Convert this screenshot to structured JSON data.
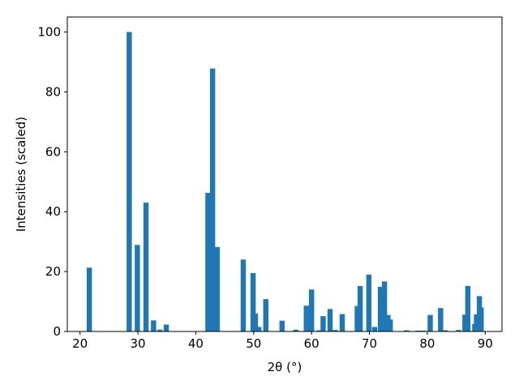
{
  "chart_data": {
    "type": "bar",
    "xlabel": "2θ (°)",
    "ylabel": "Intensities (scaled)",
    "x": [
      21.6,
      28.5,
      29.9,
      31.4,
      32.7,
      33.8,
      34.9,
      42.1,
      42.9,
      43.7,
      48.2,
      49.9,
      50.3,
      50.9,
      52.1,
      54.9,
      57.3,
      59.1,
      60.0,
      61.3,
      62.0,
      63.2,
      64.1,
      65.3,
      67.9,
      68.4,
      69.9,
      70.9,
      71.9,
      72.6,
      73.2,
      73.6,
      76.4,
      78.4,
      79.3,
      80.5,
      82.3,
      83.1,
      85.4,
      86.5,
      87.0,
      88.2,
      88.5,
      89.0,
      89.3
    ],
    "values": [
      21.3,
      100,
      28.9,
      43,
      3.7,
      0.6,
      2.3,
      46.3,
      87.8,
      28.2,
      24,
      19.5,
      6,
      1.5,
      10.8,
      3.6,
      0.6,
      8.6,
      14,
      0.4,
      5.1,
      7.5,
      0.5,
      5.8,
      8.5,
      15.2,
      19,
      1.5,
      14.9,
      16.7,
      5.5,
      4,
      0.4,
      0.3,
      0.3,
      5.5,
      7.8,
      0.4,
      0.5,
      5.6,
      15.2,
      2.5,
      5.7,
      11.8,
      8
    ],
    "color": "#1f77b4",
    "xlim": [
      17.8,
      92.9
    ],
    "xticks": [
      20,
      30,
      40,
      50,
      60,
      70,
      80,
      90
    ],
    "ylim": [
      0,
      105
    ],
    "yticks": [
      0,
      20,
      40,
      60,
      80,
      100
    ]
  }
}
